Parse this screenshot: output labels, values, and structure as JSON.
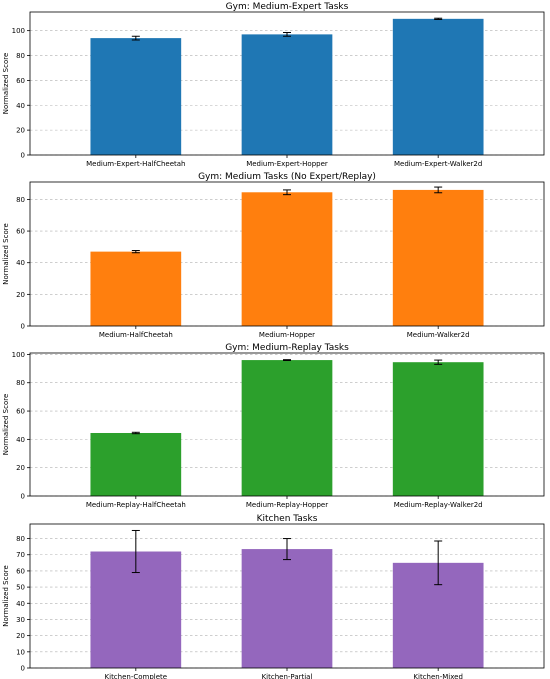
{
  "chart_data": [
    {
      "type": "bar",
      "title": "Gym: Medium-Expert Tasks",
      "ylabel": "Normalized Score",
      "categories": [
        "Medium-Expert-HalfCheetah",
        "Medium-Expert-Hopper",
        "Medium-Expert-Walker2d"
      ],
      "values": [
        94,
        97,
        109.5
      ],
      "errors": [
        1.5,
        1.5,
        0.5
      ],
      "yticks": [
        0,
        20,
        40,
        60,
        80,
        100
      ],
      "ylim": [
        0,
        115
      ],
      "color": "#1f77b4",
      "grid": true
    },
    {
      "type": "bar",
      "title": "Gym: Medium Tasks (No Expert/Replay)",
      "ylabel": "Normalized Score",
      "categories": [
        "Medium-HalfCheetah",
        "Medium-Hopper",
        "Medium-Walker2d"
      ],
      "values": [
        47,
        84.5,
        86
      ],
      "errors": [
        0.7,
        1.5,
        1.8
      ],
      "yticks": [
        0,
        20,
        40,
        60,
        80
      ],
      "ylim": [
        0,
        91
      ],
      "color": "#ff7f0e",
      "grid": true
    },
    {
      "type": "bar",
      "title": "Gym: Medium-Replay Tasks",
      "ylabel": "Normalized Score",
      "categories": [
        "Medium-Replay-HalfCheetah",
        "Medium-Replay-Hopper",
        "Medium-Replay-Walker2d"
      ],
      "values": [
        44.5,
        96,
        94.5
      ],
      "errors": [
        0.5,
        0.3,
        1.5
      ],
      "yticks": [
        0,
        20,
        40,
        60,
        80,
        100
      ],
      "ylim": [
        0,
        101
      ],
      "color": "#2ca02c",
      "grid": true
    },
    {
      "type": "bar",
      "title": "Kitchen Tasks",
      "ylabel": "Normalized Score",
      "categories": [
        "Kitchen-Complete",
        "Kitchen-Partial",
        "Kitchen-Mixed"
      ],
      "values": [
        72,
        73.5,
        65
      ],
      "errors": [
        13,
        6.5,
        13.5
      ],
      "yticks": [
        0,
        10,
        20,
        30,
        40,
        50,
        60,
        70,
        80
      ],
      "ylim": [
        0,
        89
      ],
      "color": "#9467bd",
      "grid": true
    }
  ]
}
